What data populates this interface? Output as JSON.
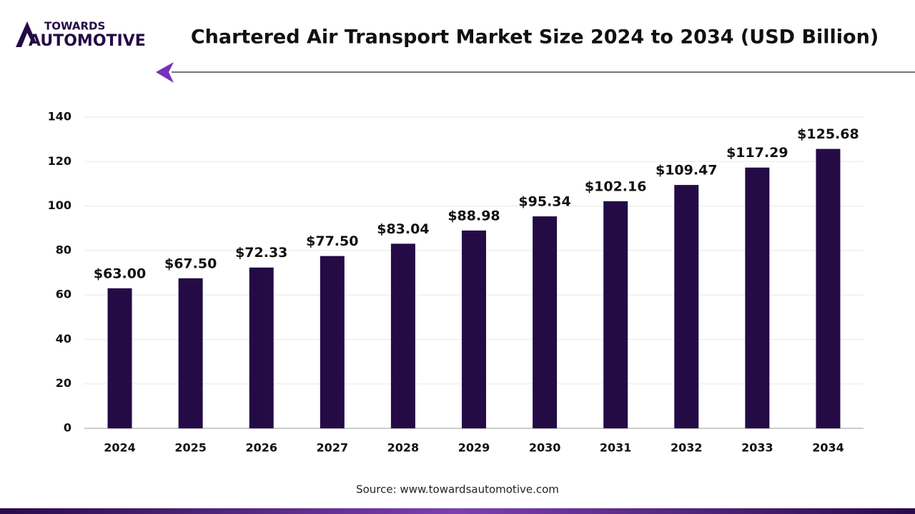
{
  "logo": {
    "top": "TOWARDS",
    "bottom": "AUTOMOTIVE"
  },
  "chart_data": {
    "type": "bar",
    "title": "Chartered Air Transport Market Size 2024 to 2034 (USD Billion)",
    "categories": [
      "2024",
      "2025",
      "2026",
      "2027",
      "2028",
      "2029",
      "2030",
      "2031",
      "2032",
      "2033",
      "2034"
    ],
    "values": [
      63.0,
      67.5,
      72.33,
      77.5,
      83.04,
      88.98,
      95.34,
      102.16,
      109.47,
      117.29,
      125.68
    ],
    "value_labels": [
      "$63.00",
      "$67.50",
      "$72.33",
      "$77.50",
      "$83.04",
      "$88.98",
      "$95.34",
      "$102.16",
      "$109.47",
      "$117.29",
      "$125.68"
    ],
    "color": "#240b46",
    "ylim": [
      0,
      140
    ],
    "yticks": [
      0,
      20,
      40,
      60,
      80,
      100,
      120,
      140
    ],
    "grid": true,
    "source": "Source: www.towardsautomotive.com"
  }
}
